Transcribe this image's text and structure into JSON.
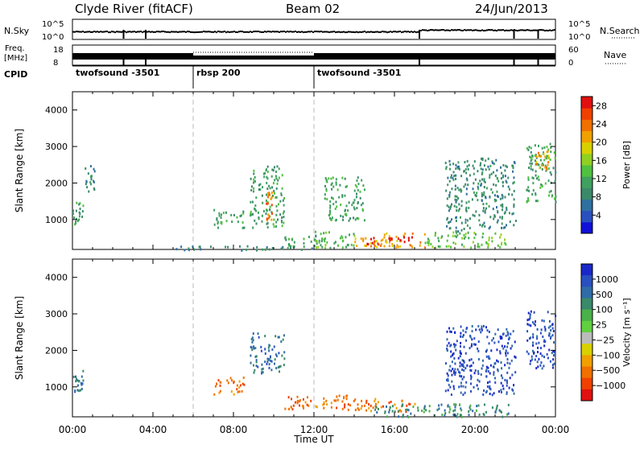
{
  "header": {
    "station": "Clyde River (fitACF)",
    "beam": "Beam 02",
    "date": "24/Jun/2013"
  },
  "strips": {
    "nsky_label": "N.Sky",
    "nsearch_label": "N.Search",
    "nsky_ticks": [
      "10^5",
      "10^0"
    ],
    "nsearch_ticks": [
      "10^5",
      "10^0"
    ],
    "freq_label_1": "Freq.",
    "freq_label_2": "[MHz]",
    "freq_ticks": [
      "18",
      "8"
    ],
    "nave_label": "Nave",
    "nave_ticks": [
      "60",
      "0"
    ],
    "cpid_label": "CPID",
    "cpid_segments": [
      {
        "label": "twofsound -3501",
        "start_hour": 0,
        "end_hour": 6
      },
      {
        "label": "rbsp 200",
        "start_hour": 6,
        "end_hour": 12
      },
      {
        "label": "twofsound -3501",
        "start_hour": 12,
        "end_hour": 24
      }
    ],
    "nsky_gap_hours": [
      2.5,
      3.6,
      17.2,
      21.9,
      23.1
    ],
    "freq_gap_hours": [
      2.5,
      3.6,
      17.2,
      21.9,
      23.1
    ]
  },
  "chart_data": [
    {
      "type": "heatmap",
      "title": "",
      "xlabel": "Time UT",
      "ylabel": "Slant Range [km]",
      "x_ticks": [
        "00:00",
        "04:00",
        "08:00",
        "12:00",
        "16:00",
        "20:00",
        "00:00"
      ],
      "y_ticks": [
        "1000",
        "2000",
        "3000",
        "4000"
      ],
      "xlim_hours": [
        0,
        24
      ],
      "ylim_km": [
        180,
        4500
      ],
      "colorbar": {
        "label": "Power [dB]",
        "ticks": [
          "4",
          "8",
          "12",
          "16",
          "20",
          "24",
          "28"
        ],
        "range": [
          0,
          30
        ],
        "colors": [
          "#1010d8",
          "#2a50c0",
          "#2f70a0",
          "#3a8a6a",
          "#40a060",
          "#50c040",
          "#90d020",
          "#d8d000",
          "#f0a000",
          "#f07000",
          "#f04000",
          "#e01010"
        ]
      },
      "regions": [
        {
          "t0": 0.0,
          "t1": 0.5,
          "r0": 900,
          "r1": 1500,
          "value": 10
        },
        {
          "t0": 0.6,
          "t1": 1.2,
          "r0": 1800,
          "r1": 2600,
          "value": 8
        },
        {
          "t0": 7.0,
          "t1": 8.5,
          "r0": 800,
          "r1": 1300,
          "value": 12
        },
        {
          "t0": 8.8,
          "t1": 10.5,
          "r0": 800,
          "r1": 2500,
          "value": 10
        },
        {
          "t0": 9.6,
          "t1": 9.9,
          "r0": 1000,
          "r1": 1800,
          "value": 24
        },
        {
          "t0": 5.0,
          "t1": 12.0,
          "r0": 180,
          "r1": 300,
          "value": 8
        },
        {
          "t0": 10.5,
          "t1": 12.5,
          "r0": 250,
          "r1": 600,
          "value": 10
        },
        {
          "t0": 12.0,
          "t1": 14.0,
          "r0": 250,
          "r1": 700,
          "value": 14
        },
        {
          "t0": 14.0,
          "t1": 17.5,
          "r0": 250,
          "r1": 650,
          "value": 22
        },
        {
          "t0": 14.5,
          "t1": 17.0,
          "r0": 350,
          "r1": 550,
          "value": 28
        },
        {
          "t0": 17.5,
          "t1": 21.5,
          "r0": 250,
          "r1": 700,
          "value": 14
        },
        {
          "t0": 12.5,
          "t1": 14.5,
          "r0": 1000,
          "r1": 2200,
          "value": 10
        },
        {
          "t0": 18.5,
          "t1": 22.0,
          "r0": 700,
          "r1": 2700,
          "value": 8
        },
        {
          "t0": 22.5,
          "t1": 24.0,
          "r0": 1500,
          "r1": 3100,
          "value": 12
        },
        {
          "t0": 23.0,
          "t1": 23.7,
          "r0": 2400,
          "r1": 2900,
          "value": 20
        }
      ]
    },
    {
      "type": "heatmap",
      "title": "",
      "xlabel": "Time UT",
      "ylabel": "Slant Range [km]",
      "x_ticks": [
        "00:00",
        "04:00",
        "08:00",
        "12:00",
        "16:00",
        "20:00",
        "00:00"
      ],
      "y_ticks": [
        "1000",
        "2000",
        "3000",
        "4000"
      ],
      "xlim_hours": [
        0,
        24
      ],
      "ylim_km": [
        180,
        4500
      ],
      "colorbar": {
        "label": "Velocity [m s⁻¹]",
        "ticks": [
          "1000",
          "500",
          "100",
          "25",
          "−25",
          "−100",
          "−500",
          "−1000"
        ],
        "colors": [
          "#1a28c8",
          "#2a50c0",
          "#306ca8",
          "#3a8a6a",
          "#4ab04a",
          "#60d040",
          "#bbbbbb",
          "#d8d000",
          "#f0a000",
          "#f07000",
          "#f04000",
          "#e01010"
        ]
      },
      "regions": [
        {
          "t0": 0.0,
          "t1": 0.5,
          "r0": 900,
          "r1": 1500,
          "value": 300
        },
        {
          "t0": 7.0,
          "t1": 8.5,
          "r0": 800,
          "r1": 1300,
          "value": -300
        },
        {
          "t0": 8.8,
          "t1": 10.5,
          "r0": 1400,
          "r1": 2500,
          "value": 300
        },
        {
          "t0": 10.5,
          "t1": 14.0,
          "r0": 400,
          "r1": 800,
          "value": -300
        },
        {
          "t0": 14.0,
          "t1": 17.0,
          "r0": 350,
          "r1": 700,
          "value": -200
        },
        {
          "t0": 15.0,
          "t1": 22.0,
          "r0": 200,
          "r1": 550,
          "value": 100
        },
        {
          "t0": 18.5,
          "t1": 22.0,
          "r0": 800,
          "r1": 2700,
          "value": 700
        },
        {
          "t0": 22.5,
          "t1": 24.0,
          "r0": 1500,
          "r1": 3100,
          "value": 600
        }
      ]
    }
  ]
}
